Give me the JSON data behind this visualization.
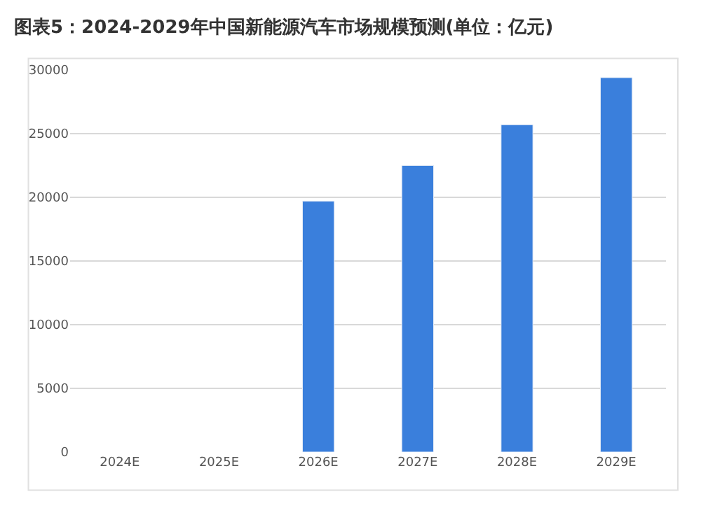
{
  "chart_data": {
    "type": "bar",
    "title": "图表5：2024-2029年中国新能源汽车市场规模预测(单位：亿元)",
    "categories": [
      "2024E",
      "2025E",
      "2026E",
      "2027E",
      "2028E",
      "2029E"
    ],
    "values": [
      null,
      null,
      19700,
      22500,
      25700,
      29400
    ],
    "color": "#3a7fdc",
    "ylim": [
      0,
      30000
    ],
    "yticks": [
      0,
      5000,
      10000,
      15000,
      20000,
      25000,
      30000
    ],
    "grid": "y"
  }
}
